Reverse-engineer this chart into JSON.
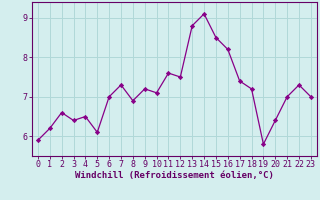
{
  "x": [
    0,
    1,
    2,
    3,
    4,
    5,
    6,
    7,
    8,
    9,
    10,
    11,
    12,
    13,
    14,
    15,
    16,
    17,
    18,
    19,
    20,
    21,
    22,
    23
  ],
  "y": [
    5.9,
    6.2,
    6.6,
    6.4,
    6.5,
    6.1,
    7.0,
    7.3,
    6.9,
    7.2,
    7.1,
    7.6,
    7.5,
    8.8,
    9.1,
    8.5,
    8.2,
    7.4,
    7.2,
    5.8,
    6.4,
    7.0,
    7.3,
    7.0
  ],
  "line_color": "#880088",
  "marker": "D",
  "marker_size": 2.2,
  "bg_color": "#d4eeee",
  "grid_color": "#b0d8d8",
  "axis_color": "#660066",
  "xlabel": "Windchill (Refroidissement éolien,°C)",
  "xlabel_fontsize": 6.5,
  "tick_fontsize": 6.0,
  "ylim": [
    5.5,
    9.4
  ],
  "xlim": [
    -0.5,
    23.5
  ],
  "yticks": [
    6,
    7,
    8,
    9
  ],
  "xticks": [
    0,
    1,
    2,
    3,
    4,
    5,
    6,
    7,
    8,
    9,
    10,
    11,
    12,
    13,
    14,
    15,
    16,
    17,
    18,
    19,
    20,
    21,
    22,
    23
  ]
}
